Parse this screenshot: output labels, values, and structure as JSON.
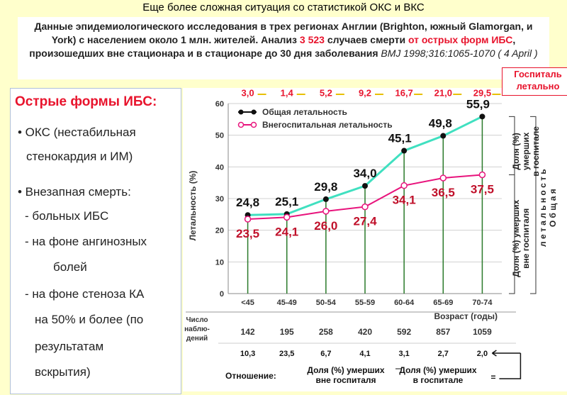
{
  "slide": {
    "title": "Еще более сложная ситуация со статистикой ОКС и ВКС",
    "info_part1": "Данные эпидемиологического исследования в трех регионах Англии (Brighton, южный Glamorgan, и York) с населением около 1 млн. жителей. Анализ ",
    "info_red1": "3 523",
    "info_part2": " случаев смерти ",
    "info_red2": "от острых форм ИБС",
    "info_part3": ", произошедших вне стационара и в стационаре до 30 дня заболевания",
    "info_source": " BMJ 1998;316:1065-1070  ( 4 April )",
    "hospital_label_line1": "Госпиталь",
    "hospital_label_line2": "летально"
  },
  "left_panel": {
    "title": "Острые формы ИБС:",
    "lines": [
      "• ОКС  (нестабильная",
      "стенокардия и ИМ)",
      "• Внезапная смерть:",
      "- больных ИБС",
      "- на фоне ангинозных",
      "болей",
      "- на фоне стеноза КА",
      "на 50% и более (по",
      "результатам",
      "вскрытия)"
    ]
  },
  "chart_data": {
    "type": "line",
    "categories": [
      "<45",
      "45-49",
      "50-54",
      "55-59",
      "60-64",
      "65-69",
      "70-74"
    ],
    "series": [
      {
        "name": "Общая летальность",
        "values": [
          24.8,
          25.1,
          29.8,
          34.0,
          45.1,
          49.8,
          55.9
        ],
        "labels": [
          "24,8",
          "25,1",
          "29,8",
          "34,0",
          "45,1",
          "49,8",
          "55,9"
        ],
        "color": "#40e0c0"
      },
      {
        "name": "Внегоспитальная летальность",
        "values": [
          23.5,
          24.1,
          26.0,
          27.4,
          34.1,
          36.5,
          37.5
        ],
        "labels": [
          "23,5",
          "24,1",
          "26,0",
          "27,4",
          "34,1",
          "36,5",
          "37,5"
        ],
        "color": "#e8137c"
      }
    ],
    "hospital_mortality_labels": [
      "3,0",
      "1,4",
      "5,2",
      "9,2",
      "16,7",
      "21,0",
      "29,5"
    ],
    "ylabel": "Летальность (%)",
    "xlabel": "Возраст (годы)",
    "ylim": [
      0,
      60
    ],
    "yticks": [
      0,
      10,
      20,
      30,
      40,
      50,
      60
    ],
    "grid": true,
    "legend": "top-left",
    "right_labels": {
      "hospital_share": [
        "Доля (%)",
        "умерших",
        "в госпитале"
      ],
      "out_share": [
        "Доля (%) умерших",
        "вне госпиталя"
      ],
      "overall": [
        "л е т а л ь н о с т ь",
        "О б щ а я"
      ]
    },
    "table": {
      "n_label": [
        "Число",
        "наблю-",
        "дений"
      ],
      "n_values": [
        "142",
        "195",
        "258",
        "420",
        "592",
        "857",
        "1059"
      ],
      "ratio_values": [
        "10,3",
        "23,5",
        "6,7",
        "4,1",
        "3,1",
        "2,7",
        "2,0"
      ],
      "ratio_label": "Отношение:",
      "ratio_num": [
        "Доля (%) умерших",
        "вне госпиталя"
      ],
      "ratio_den": [
        "Доля (%) умерших",
        "в госпитале"
      ],
      "ratio_eq": "="
    }
  }
}
